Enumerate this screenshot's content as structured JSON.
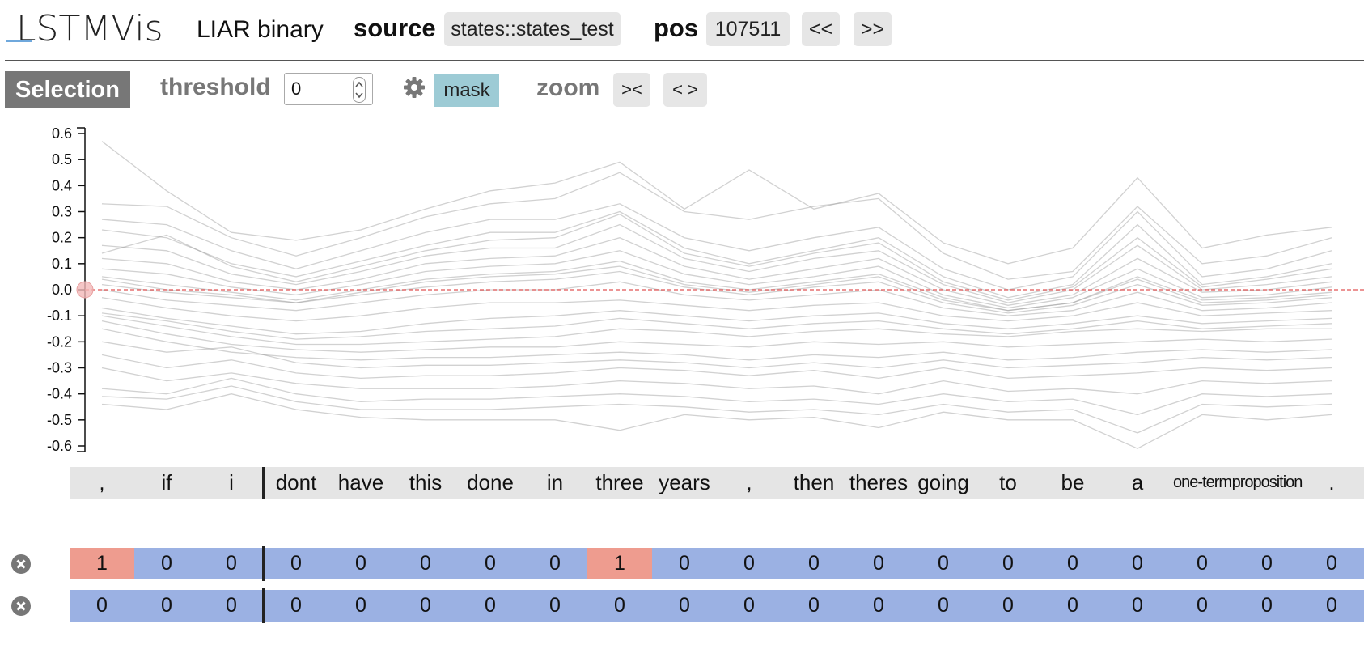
{
  "app": {
    "title": "LSTMVis",
    "dataset": "LIAR binary"
  },
  "header": {
    "source_label": "source",
    "source_value": "states::states_test",
    "pos_label": "pos",
    "pos_value": "107511",
    "prev_label": "<<",
    "next_label": ">>"
  },
  "toolbar": {
    "selection_label": "Selection",
    "threshold_label": "threshold",
    "threshold_value": "0",
    "mask_label": "mask",
    "zoom_label": "zoom",
    "zoom_in_label": "><",
    "zoom_out_label": "< >"
  },
  "colors": {
    "positive": "#ee9c8f",
    "negative": "#9bb1e3",
    "threshold_line": "#e05555",
    "lines": "#999999"
  },
  "words": [
    ",",
    "if",
    "i",
    "dont",
    "have",
    "this",
    "done",
    "in",
    "three",
    "years",
    ",",
    "then",
    "theres",
    "going",
    "to",
    "be",
    "a",
    "one-term",
    "proposition",
    "."
  ],
  "annotation_rows": [
    {
      "values": [
        "1",
        "0",
        "0",
        "0",
        "0",
        "0",
        "0",
        "0",
        "1",
        "0",
        "0",
        "0",
        "0",
        "0",
        "0",
        "0",
        "0",
        "0",
        "0",
        "0"
      ]
    },
    {
      "values": [
        "0",
        "0",
        "0",
        "0",
        "0",
        "0",
        "0",
        "0",
        "0",
        "0",
        "0",
        "0",
        "0",
        "0",
        "0",
        "0",
        "0",
        "0",
        "0",
        "0"
      ]
    }
  ],
  "chart_data": {
    "type": "line",
    "categories": [
      ",",
      "if",
      "i",
      "dont",
      "have",
      "this",
      "done",
      "in",
      "three",
      "years",
      ",",
      "then",
      "theres",
      "going",
      "to",
      "be",
      "a",
      "one-term",
      "proposition",
      "."
    ],
    "ylim": [
      -0.6,
      0.6
    ],
    "yticks": [
      "0.6",
      "0.5",
      "0.4",
      "0.3",
      "0.2",
      "0.1",
      "0.0",
      "-0.1",
      "-0.2",
      "-0.3",
      "-0.4",
      "-0.5",
      "-0.6"
    ],
    "threshold": 0.0,
    "series": [
      {
        "values": [
          0.57,
          0.38,
          0.22,
          0.19,
          0.23,
          0.31,
          0.38,
          0.41,
          0.49,
          0.31,
          0.46,
          0.31,
          0.37,
          0.18,
          0.1,
          0.16,
          0.43,
          0.16,
          0.21,
          0.24
        ]
      },
      {
        "values": [
          0.33,
          0.32,
          0.2,
          0.13,
          0.2,
          0.28,
          0.33,
          0.35,
          0.45,
          0.3,
          0.27,
          0.32,
          0.35,
          0.14,
          0.04,
          0.07,
          0.32,
          0.1,
          0.13,
          0.2
        ]
      },
      {
        "values": [
          0.27,
          0.25,
          0.15,
          0.08,
          0.15,
          0.22,
          0.27,
          0.27,
          0.33,
          0.2,
          0.15,
          0.2,
          0.24,
          0.08,
          0.0,
          0.05,
          0.3,
          0.05,
          0.08,
          0.15
        ]
      },
      {
        "values": [
          0.23,
          0.2,
          0.1,
          0.05,
          0.11,
          0.17,
          0.22,
          0.22,
          0.3,
          0.16,
          0.1,
          0.15,
          0.2,
          0.05,
          -0.03,
          0.02,
          0.25,
          0.02,
          0.05,
          0.1
        ]
      },
      {
        "values": [
          0.17,
          0.15,
          0.06,
          0.02,
          0.07,
          0.13,
          0.16,
          0.16,
          0.25,
          0.12,
          0.07,
          0.12,
          0.15,
          0.02,
          -0.05,
          0.0,
          0.17,
          0.0,
          0.02,
          0.05
        ]
      },
      {
        "values": [
          0.12,
          0.1,
          0.03,
          0.0,
          0.04,
          0.1,
          0.12,
          0.13,
          0.2,
          0.09,
          0.04,
          0.08,
          0.12,
          0.0,
          -0.06,
          -0.02,
          0.12,
          -0.01,
          0.0,
          0.03
        ]
      },
      {
        "values": [
          0.08,
          0.06,
          0.01,
          -0.02,
          0.02,
          0.07,
          0.09,
          0.1,
          0.15,
          0.06,
          0.02,
          0.05,
          0.09,
          -0.02,
          -0.07,
          -0.03,
          0.08,
          -0.03,
          -0.02,
          0.01
        ]
      },
      {
        "values": [
          0.05,
          0.02,
          -0.01,
          -0.04,
          0.0,
          0.04,
          0.06,
          0.07,
          0.11,
          0.03,
          0.0,
          0.03,
          0.06,
          -0.03,
          -0.08,
          -0.05,
          0.05,
          -0.04,
          -0.03,
          -0.01
        ]
      },
      {
        "values": [
          0.02,
          -0.01,
          -0.03,
          -0.05,
          -0.02,
          0.01,
          0.03,
          0.04,
          0.07,
          0.01,
          -0.02,
          0.01,
          0.03,
          -0.05,
          -0.09,
          -0.06,
          0.02,
          -0.06,
          -0.05,
          -0.03
        ]
      },
      {
        "values": [
          0.0,
          -0.04,
          -0.06,
          -0.08,
          -0.05,
          -0.02,
          0.0,
          0.0,
          0.03,
          -0.02,
          -0.04,
          -0.02,
          0.0,
          -0.07,
          -0.1,
          -0.08,
          -0.01,
          -0.08,
          -0.07,
          -0.05
        ]
      },
      {
        "values": [
          -0.03,
          -0.07,
          -0.1,
          -0.12,
          -0.1,
          -0.07,
          -0.05,
          -0.05,
          -0.04,
          -0.06,
          -0.08,
          -0.06,
          -0.05,
          -0.1,
          -0.12,
          -0.1,
          -0.05,
          -0.1,
          -0.09,
          -0.08
        ]
      },
      {
        "values": [
          -0.07,
          -0.11,
          -0.14,
          -0.17,
          -0.16,
          -0.13,
          -0.11,
          -0.1,
          -0.08,
          -0.1,
          -0.12,
          -0.1,
          -0.09,
          -0.13,
          -0.15,
          -0.13,
          -0.1,
          -0.13,
          -0.12,
          -0.11
        ]
      },
      {
        "values": [
          -0.1,
          -0.14,
          -0.18,
          -0.21,
          -0.21,
          -0.2,
          -0.19,
          -0.18,
          -0.15,
          -0.16,
          -0.18,
          -0.16,
          -0.15,
          -0.17,
          -0.18,
          -0.16,
          -0.15,
          -0.16,
          -0.15,
          -0.15
        ]
      },
      {
        "values": [
          -0.12,
          -0.17,
          -0.21,
          -0.23,
          -0.24,
          -0.23,
          -0.22,
          -0.22,
          -0.2,
          -0.21,
          -0.22,
          -0.2,
          -0.21,
          -0.2,
          -0.22,
          -0.21,
          -0.2,
          -0.19,
          -0.2,
          -0.19
        ]
      },
      {
        "values": [
          -0.15,
          -0.2,
          -0.24,
          -0.26,
          -0.27,
          -0.26,
          -0.26,
          -0.25,
          -0.24,
          -0.25,
          -0.27,
          -0.25,
          -0.26,
          -0.24,
          -0.27,
          -0.26,
          -0.24,
          -0.23,
          -0.24,
          -0.23
        ]
      },
      {
        "values": [
          -0.25,
          -0.3,
          -0.27,
          -0.32,
          -0.34,
          -0.33,
          -0.33,
          -0.32,
          -0.3,
          -0.31,
          -0.33,
          -0.31,
          -0.34,
          -0.3,
          -0.34,
          -0.33,
          -0.32,
          -0.3,
          -0.31,
          -0.3
        ]
      },
      {
        "values": [
          -0.3,
          -0.35,
          -0.32,
          -0.36,
          -0.38,
          -0.38,
          -0.38,
          -0.37,
          -0.35,
          -0.36,
          -0.38,
          -0.37,
          -0.4,
          -0.35,
          -0.39,
          -0.38,
          -0.4,
          -0.35,
          -0.36,
          -0.35
        ]
      },
      {
        "values": [
          -0.38,
          -0.4,
          -0.34,
          -0.4,
          -0.43,
          -0.42,
          -0.42,
          -0.41,
          -0.4,
          -0.41,
          -0.43,
          -0.42,
          -0.44,
          -0.4,
          -0.43,
          -0.42,
          -0.48,
          -0.4,
          -0.41,
          -0.4
        ]
      },
      {
        "values": [
          -0.41,
          -0.42,
          -0.37,
          -0.43,
          -0.46,
          -0.46,
          -0.46,
          -0.45,
          -0.44,
          -0.45,
          -0.47,
          -0.46,
          -0.48,
          -0.44,
          -0.47,
          -0.46,
          -0.55,
          -0.44,
          -0.45,
          -0.44
        ]
      },
      {
        "values": [
          -0.44,
          -0.46,
          -0.4,
          -0.46,
          -0.49,
          -0.5,
          -0.5,
          -0.5,
          -0.54,
          -0.48,
          -0.5,
          -0.49,
          -0.53,
          -0.47,
          -0.5,
          -0.5,
          -0.61,
          -0.48,
          -0.5,
          -0.48
        ]
      },
      {
        "values": [
          0.14,
          0.21,
          0.09,
          0.03,
          0.09,
          0.15,
          0.19,
          0.2,
          0.29,
          0.14,
          0.09,
          0.14,
          0.18,
          0.03,
          -0.04,
          0.01,
          0.2,
          0.01,
          0.04,
          0.08
        ]
      },
      {
        "values": [
          -0.09,
          -0.12,
          -0.16,
          -0.19,
          -0.18,
          -0.16,
          -0.15,
          -0.14,
          -0.11,
          -0.13,
          -0.15,
          -0.13,
          -0.12,
          -0.15,
          -0.17,
          -0.15,
          -0.12,
          -0.15,
          -0.14,
          -0.13
        ]
      },
      {
        "values": [
          0.04,
          0.0,
          -0.02,
          -0.05,
          -0.01,
          0.03,
          0.05,
          0.06,
          0.09,
          0.02,
          -0.01,
          0.02,
          0.05,
          -0.04,
          -0.08,
          -0.05,
          0.04,
          -0.05,
          -0.04,
          -0.02
        ]
      },
      {
        "values": [
          -0.2,
          -0.24,
          -0.22,
          -0.28,
          -0.3,
          -0.29,
          -0.29,
          -0.28,
          -0.27,
          -0.28,
          -0.3,
          -0.28,
          -0.3,
          -0.27,
          -0.3,
          -0.29,
          -0.28,
          -0.26,
          -0.27,
          -0.26
        ]
      }
    ]
  }
}
